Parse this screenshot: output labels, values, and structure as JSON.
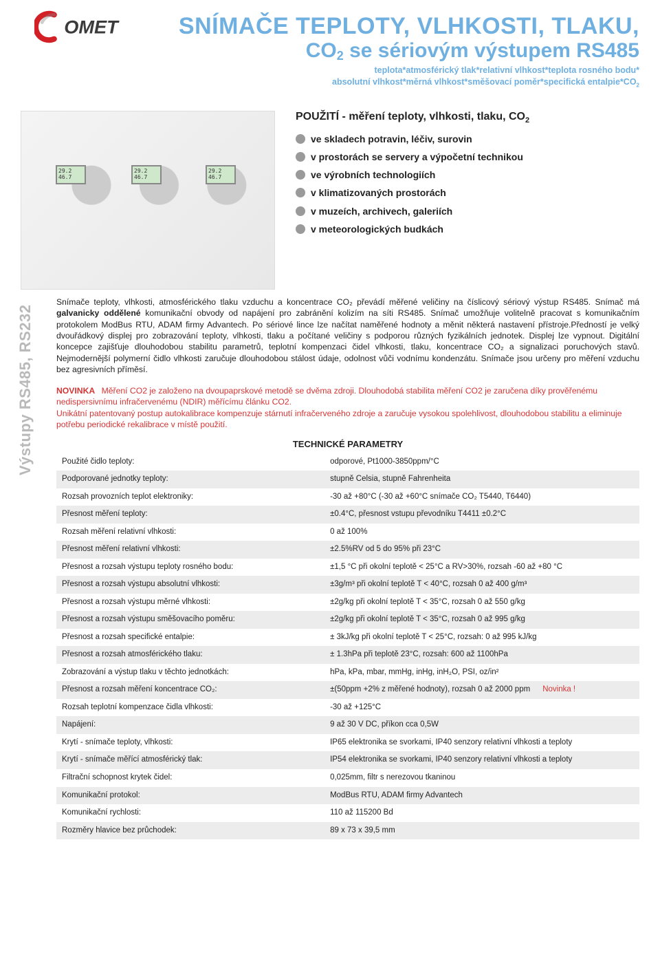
{
  "brand": {
    "name": "COMET",
    "arc_color": "#d31f26",
    "text_color": "#3b3b3b"
  },
  "headline": {
    "line1": "SNÍMAČE TEPLOTY, VLHKOSTI, TLAKU,",
    "line2_pre": "CO",
    "line2_sub": "2",
    "line2_post": " se sériovým výstupem RS485",
    "tagline1": "teplota*atmosférický tlak*relativní vlhkost*teplota rosného bodu*",
    "tagline2": "absolutní vlhkost*měrná vlhkost*směšovací poměr*specifická entalpie*CO",
    "tagline2_sub": "2",
    "color": "#6fb0e0"
  },
  "side_label": "Výstupy RS485, RS232",
  "usage": {
    "title_pre": "POUŽITÍ - měření teploty, vlhkosti, tlaku, CO",
    "title_sub": "2",
    "items": [
      "ve skladech potravin, léčiv, surovin",
      "v prostorách se servery a výpočetní technikou",
      "ve výrobních technologiích",
      "v klimatizovaných prostorách",
      "v muzeích, archivech, galeriích",
      "v meteorologických budkách"
    ],
    "bullet_color": "#9a9a9a"
  },
  "description": {
    "part1": "Snímače teploty, vlhkosti, atmosférického tlaku vzduchu a koncentrace CO₂ převádí měřené veličiny na číslicový sériový výstup RS485. Snímač má ",
    "bold": "galvanicky oddělené",
    "part2": " komunikační obvody od napájení pro zabránění kolizím na síti RS485. Snímač umožňuje volitelně pracovat s komunikačním protokolem ModBus RTU, ADAM firmy Advantech. Po sériové lince lze načítat naměřené hodnoty a měnit některá nastavení přístroje.Předností je velký dvouřádkový displej pro zobrazování teploty, vlhkosti, tlaku a počítané veličiny s podporou různých fyzikálních jednotek. Displej lze vypnout. Digitální koncepce zajišťuje dlouhodobou stabilitu parametrů, teplotní kompenzaci čidel vlhkosti, tlaku, koncentrace CO₂ a signalizaci poruchových stavů. Nejmodernější polymerní čidlo vlhkosti zaručuje dlouhodobou stálost údaje, odolnost vůči vodnímu kondenzátu. Snímače jsou určeny pro měření vzduchu bez agresivních příměsí."
  },
  "novinka": {
    "title": "NOVINKA",
    "text": "Měření CO2 je založeno na dvoupaprskové metodě se dvěma zdroji. Dlouhodobá stabilita měření CO2 je zaručena díky prověřenému nedispersivnímu infračervenému (NDIR) měřícímu článku CO2.\nUnikátní patentovaný postup autokalibrace kompenzuje stárnutí infračerveného zdroje a zaručuje vysokou spolehlivost, dlouhodobou stabilitu a eliminuje potřebu periodické rekalibrace v místě použití.",
    "color": "#d43535"
  },
  "params_title": "TECHNICKÉ PARAMETRY",
  "params": [
    {
      "label": "Použité čidlo teploty:",
      "value": "odporové, Pt1000-3850ppm/°C",
      "shade": false
    },
    {
      "label": "Podporované jednotky teploty:",
      "value": "stupně Celsia, stupně Fahrenheita",
      "shade": true
    },
    {
      "label": "Rozsah provozních teplot elektroniky:",
      "value": "-30 až +80°C    (-30 až +60°C snímače CO₂ T5440, T6440)",
      "shade": false
    },
    {
      "label": "Přesnost měření teploty:",
      "value": "±0.4°C, přesnost vstupu převodníku T4411 ±0.2°C",
      "shade": true
    },
    {
      "label": "Rozsah měření relativní vlhkosti:",
      "value": "0 až 100%",
      "shade": false
    },
    {
      "label": "Přesnost měření relativní vlhkosti:",
      "value": "±2.5%RV od 5 do 95% při 23°C",
      "shade": true
    },
    {
      "label": "Přesnost a rozsah výstupu teploty rosného bodu:",
      "value": "±1,5 °C při okolní teplotě < 25°C a RV>30%,  rozsah -60 až +80 °C",
      "shade": false
    },
    {
      "label": "Přesnost a rozsah výstupu absolutní vlhkosti:",
      "value": "±3g/m³ při okolní teplotě T < 40°C, rozsah  0 až 400 g/m³",
      "shade": true
    },
    {
      "label": "Přesnost a rozsah výstupu měrné vlhkosti:",
      "value": "±2g/kg při okolní teplotě T < 35°C, rozsah  0 až 550 g/kg",
      "shade": false
    },
    {
      "label": "Přesnost a rozsah výstupu směšovacího poměru:",
      "value": "±2g/kg při okolní teplotě T < 35°C, rozsah  0 až 995 g/kg",
      "shade": true
    },
    {
      "label": "Přesnost a rozsah specifické entalpie:",
      "value": "± 3kJ/kg při okolní teplotě T < 25°C, rozsah: 0 až 995  kJ/kg",
      "shade": false
    },
    {
      "label": "Přesnost a rozsah atmosférického tlaku:",
      "value": "± 1.3hPa při teplotě 23°C, rozsah: 600 až 1100hPa",
      "shade": true
    },
    {
      "label": "Zobrazování a výstup tlaku v těchto jednotkách:",
      "value": "hPa, kPa, mbar, mmHg, inHg, inH₂O, PSI, oz/in²",
      "shade": false
    },
    {
      "label": "Přesnost a rozsah měření koncentrace CO₂:",
      "value": "±(50ppm +2% z měřené hodnoty), rozsah 0 až 2000 ppm",
      "shade": true,
      "novinka_inline": "Novinka !"
    },
    {
      "label": "Rozsah teplotní kompenzace čidla vlhkosti:",
      "value": "-30 až +125°C",
      "shade": false
    },
    {
      "label": "Napájení:",
      "value": "9 až 30 V DC, příkon cca 0,5W",
      "shade": true
    },
    {
      "label": "Krytí - snímače teploty, vlhkosti:",
      "value": "IP65 elektronika se svorkami, IP40 senzory relativní vlhkosti a teploty",
      "shade": false
    },
    {
      "label": "Krytí - snímače měřící atmosférický tlak:",
      "value": "IP54 elektronika se svorkami, IP40 senzory relativní vlhkosti a teploty",
      "shade": true
    },
    {
      "label": "Filtrační schopnost krytek čidel:",
      "value": "0,025mm, filtr s nerezovou tkaninou",
      "shade": false
    },
    {
      "label": "Komunikační protokol:",
      "value": "ModBus RTU, ADAM firmy Advantech",
      "shade": true
    },
    {
      "label": "Komunikační rychlosti:",
      "value": "110 až 115200 Bd",
      "shade": false
    },
    {
      "label": "Rozměry hlavice bez průchodek:",
      "value": "89 x 73 x 39,5 mm",
      "shade": true
    }
  ],
  "table_shade_color": "#ececec"
}
